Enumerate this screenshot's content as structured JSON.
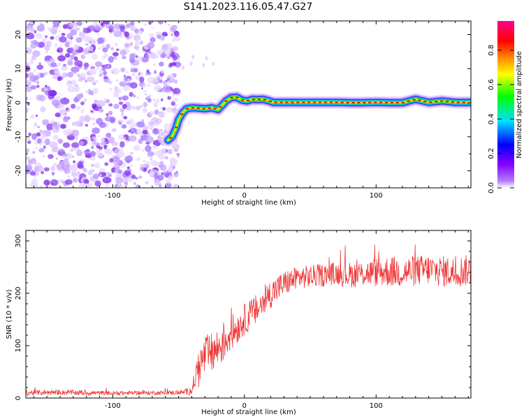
{
  "title": "S141.2023.116.05.47.G27",
  "chart_data": [
    {
      "type": "heatmap",
      "xlabel": "Height of straight line (km)",
      "ylabel": "Frequency (Hz)",
      "xlim": [
        -166,
        172
      ],
      "ylim": [
        -25,
        24
      ],
      "xticks": [
        -100,
        0,
        100
      ],
      "yticks": [
        -20,
        -10,
        0,
        10,
        20
      ],
      "noise_region_x": [
        -166,
        -50
      ],
      "signal_ridge": {
        "x": [
          -58,
          -55,
          -52,
          -50,
          -47,
          -44,
          -40,
          -35,
          -30,
          -25,
          -20,
          -17,
          -14,
          -10,
          -6,
          -2,
          2,
          6,
          10,
          14,
          18,
          22,
          30,
          40,
          50,
          60,
          70,
          80,
          90,
          100,
          110,
          120,
          130,
          140,
          150,
          160,
          172
        ],
        "freq": [
          -11,
          -10,
          -7.5,
          -5,
          -3,
          -1.8,
          -1.5,
          -1.6,
          -1.8,
          -1.5,
          -2,
          -0.8,
          0.5,
          1.5,
          1.6,
          0.8,
          0.5,
          1,
          0.9,
          1,
          0.6,
          0.1,
          0.1,
          0.1,
          0.1,
          0.1,
          0.1,
          0,
          0,
          0.1,
          0,
          0,
          1,
          0.1,
          0.5,
          0.1,
          0.1
        ]
      },
      "colorbar": {
        "label": "Normalized spectral amplitude",
        "range": [
          0,
          0.97
        ],
        "ticks": [
          "0.0",
          "0.2",
          "0.4",
          "0.6",
          "0.8"
        ],
        "colors": [
          "#ffffff",
          "#8800ff",
          "#0000ff",
          "#00e0ff",
          "#00ff00",
          "#ffff00",
          "#ff8800",
          "#ff0000",
          "#ff0090"
        ]
      }
    },
    {
      "type": "line",
      "xlabel": "Height of straight line (km)",
      "ylabel": "SNR (10 * v/v)",
      "xlim": [
        -166,
        172
      ],
      "ylim": [
        0,
        320
      ],
      "xticks": [
        -100,
        0,
        100
      ],
      "yticks": [
        0,
        100,
        200,
        300
      ],
      "line_color": "#ee3333",
      "series": [
        {
          "x": [
            -166,
            -140,
            -120,
            -100,
            -80,
            -60,
            -45,
            -40,
            -35,
            -30,
            -25,
            -20,
            -15,
            -10,
            -5,
            0,
            10,
            20,
            30,
            40,
            50,
            60,
            70,
            80,
            90,
            100,
            110,
            120,
            130,
            140,
            150,
            160,
            172
          ],
          "mean": [
            10,
            11,
            10,
            9,
            10,
            10,
            11,
            15,
            60,
            80,
            85,
            95,
            110,
            125,
            135,
            150,
            170,
            200,
            218,
            230,
            232,
            235,
            238,
            235,
            238,
            240,
            242,
            240,
            243,
            245,
            242,
            240,
            245
          ],
          "noise": [
            5,
            5,
            5,
            4,
            4,
            4,
            5,
            10,
            30,
            40,
            40,
            40,
            40,
            35,
            30,
            30,
            30,
            28,
            25,
            22,
            22,
            22,
            22,
            25,
            25,
            28,
            30,
            30,
            30,
            30,
            30,
            30,
            30
          ]
        }
      ]
    }
  ]
}
